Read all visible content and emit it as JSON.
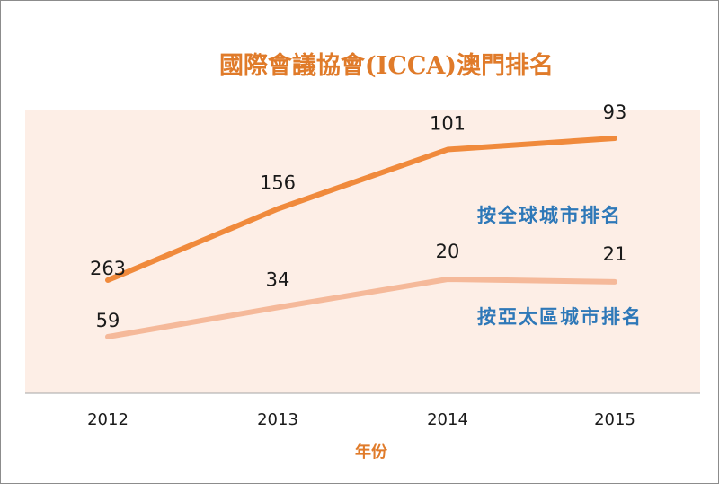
{
  "chart_data": {
    "type": "line",
    "title": "國際會議協會(ICCA)澳門排名",
    "xlabel": "年份",
    "ylabel": "",
    "categories": [
      "2012",
      "2013",
      "2014",
      "2015"
    ],
    "series": [
      {
        "name": "按全球城市排名",
        "values": [
          263,
          156,
          101,
          93
        ],
        "color": "#f08a3c"
      },
      {
        "name": "按亞太區城市排名",
        "values": [
          59,
          34,
          20,
          21
        ],
        "color": "#f5b99a"
      }
    ],
    "grid": false,
    "plot_background": "#fdeee6",
    "title_color": "#e07b2a",
    "series_label_color": "#2e78b8"
  }
}
